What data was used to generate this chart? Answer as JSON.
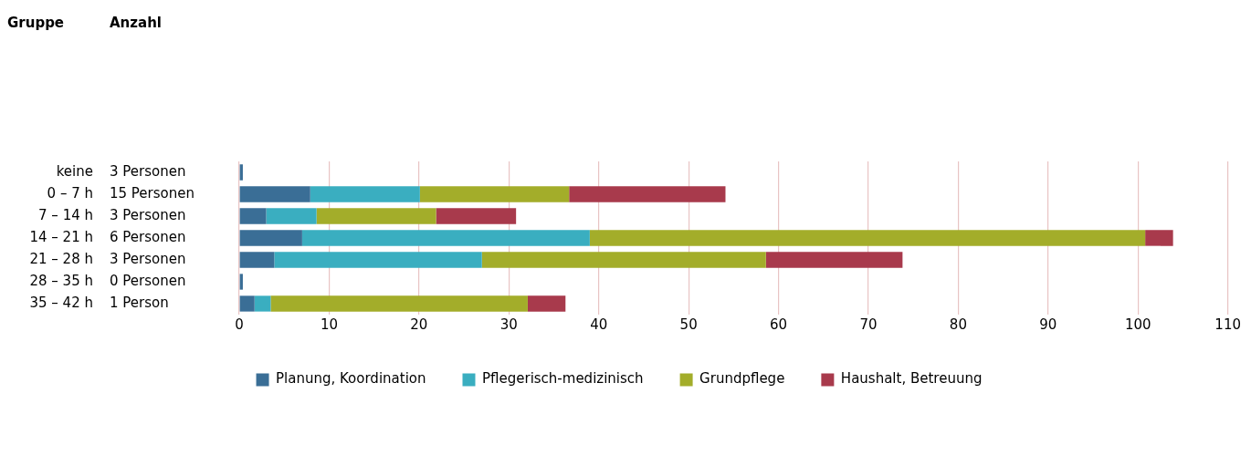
{
  "chart_data": {
    "type": "bar",
    "orientation": "horizontal",
    "stacked": true,
    "categories": [
      "keine",
      "0 – 7 h",
      "7 – 14 h",
      "14 – 21 h",
      "21 – 28 h",
      "28 – 35 h",
      "35 – 42 h"
    ],
    "series": [
      {
        "name": "Planung, Koordination",
        "color": "#3a6e96",
        "values": [
          0.4,
          7.9,
          3.0,
          7.0,
          3.9,
          0.4,
          1.7
        ]
      },
      {
        "name": "Pflegerisch-medizinisch",
        "color": "#3aaec0",
        "values": [
          0,
          12.2,
          5.6,
          32.0,
          23.1,
          0,
          1.8
        ]
      },
      {
        "name": "Grundpflege",
        "color": "#a3ad2a",
        "values": [
          0,
          16.6,
          13.3,
          61.8,
          31.6,
          0,
          28.6
        ]
      },
      {
        "name": "Haushalt, Betreuung",
        "color": "#a83a4c",
        "values": [
          0,
          17.4,
          8.9,
          3.1,
          15.2,
          0,
          4.2
        ]
      }
    ],
    "annotations": [
      "Gruppe",
      "Anzahl",
      "3 Personen",
      "15 Personen",
      "3 Personen",
      "6 Personen",
      "3 Personen",
      "0 Personen",
      "1 Person"
    ],
    "xlim": [
      0,
      110
    ],
    "xticks": [
      0,
      10,
      20,
      30,
      40,
      50,
      60,
      70,
      80,
      90,
      100,
      110
    ],
    "grid": "x",
    "legend": "bottom"
  }
}
